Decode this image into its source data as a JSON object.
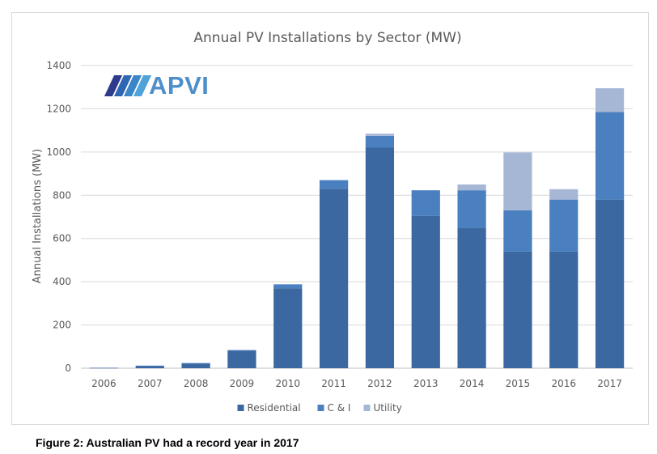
{
  "chart_data": {
    "type": "bar",
    "stacked": true,
    "title": "Annual PV Installations by Sector (MW)",
    "xlabel": "",
    "ylabel": "Annual Installations (MW)",
    "ylim": [
      0,
      1400
    ],
    "yticks": [
      0,
      200,
      400,
      600,
      800,
      1000,
      1200,
      1400
    ],
    "grid": true,
    "legend_position": "bottom",
    "categories": [
      "2006",
      "2007",
      "2008",
      "2009",
      "2010",
      "2011",
      "2012",
      "2013",
      "2014",
      "2015",
      "2016",
      "2017"
    ],
    "series": [
      {
        "name": "Residential",
        "color": "#3b68a0",
        "values": [
          2,
          10,
          22,
          82,
          370,
          830,
          1020,
          705,
          650,
          540,
          540,
          780
        ]
      },
      {
        "name": "C & I",
        "color": "#4a7fc0",
        "values": [
          0,
          2,
          2,
          2,
          18,
          40,
          55,
          118,
          173,
          190,
          240,
          405
        ]
      },
      {
        "name": "Utility",
        "color": "#a6b7d6",
        "values": [
          0,
          0,
          0,
          0,
          0,
          0,
          10,
          0,
          27,
          268,
          48,
          110
        ]
      }
    ]
  },
  "logo": {
    "text": "APVI",
    "colors": [
      "#2e3a8c",
      "#2f66b3",
      "#3a86c8",
      "#4fa3d8"
    ]
  },
  "caption": "Figure 2: Australian PV had a record year in 2017"
}
